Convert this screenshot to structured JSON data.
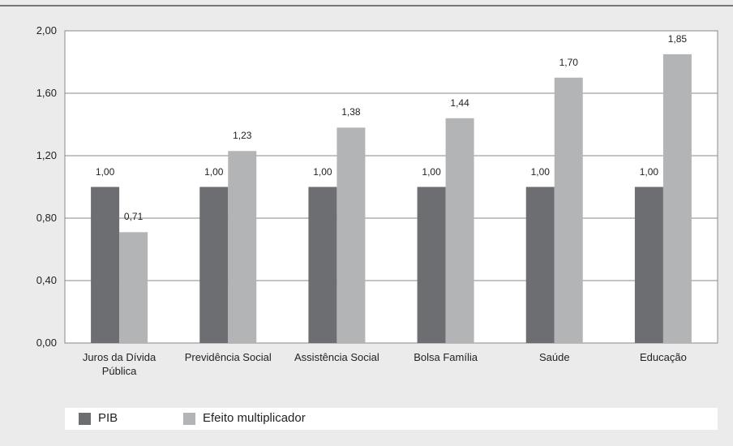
{
  "chart_data": {
    "type": "bar",
    "categories": [
      "Juros da Dívida Pública",
      "Previdência Social",
      "Assistência Social",
      "Bolsa Família",
      "Saúde",
      "Educação"
    ],
    "series": [
      {
        "name": "PIB",
        "color": "#6d6e71",
        "values": [
          1.0,
          1.0,
          1.0,
          1.0,
          1.0,
          1.0
        ],
        "value_labels": [
          "1,00",
          "1,00",
          "1,00",
          "1,00",
          "1,00",
          "1,00"
        ]
      },
      {
        "name": "Efeito multiplicador",
        "color": "#b3b4b6",
        "values": [
          0.71,
          1.23,
          1.38,
          1.44,
          1.7,
          1.85
        ],
        "value_labels": [
          "0,71",
          "1,23",
          "1,38",
          "1,44",
          "1,70",
          "1,85"
        ]
      }
    ],
    "ylim": [
      0,
      2
    ],
    "yticks": [
      {
        "value": 0,
        "label": "0,00"
      },
      {
        "value": 0.4,
        "label": "0,40"
      },
      {
        "value": 0.8,
        "label": "0,80"
      },
      {
        "value": 1.2,
        "label": "1,20"
      },
      {
        "value": 1.6,
        "label": "1,60"
      },
      {
        "value": 2,
        "label": "2,00"
      }
    ],
    "grid": true
  }
}
